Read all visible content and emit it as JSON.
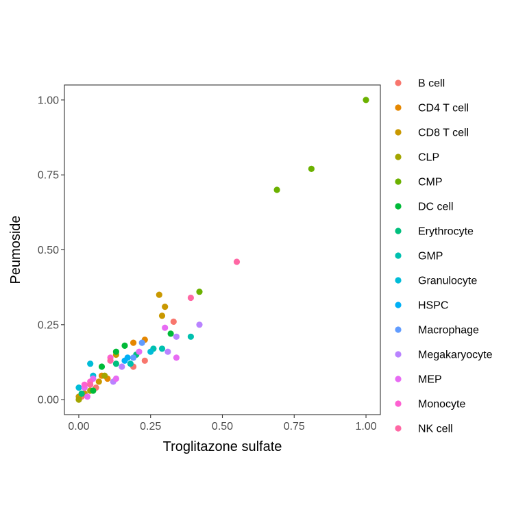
{
  "chart_data": {
    "type": "scatter",
    "xlabel": "Troglitazone sulfate",
    "ylabel": "Peumoside",
    "xlim": [
      -0.05,
      1.05
    ],
    "ylim": [
      -0.05,
      1.05
    ],
    "x_ticks": [
      "0.00",
      "0.25",
      "0.50",
      "0.75",
      "1.00"
    ],
    "y_ticks": [
      "0.00",
      "0.25",
      "0.50",
      "0.75",
      "1.00"
    ],
    "grid": false,
    "legend_position": "right",
    "series": [
      {
        "name": "B cell",
        "color": "#F8766D",
        "points": [
          [
            0.33,
            0.26
          ],
          [
            0.23,
            0.13
          ],
          [
            0.19,
            0.11
          ],
          [
            0.01,
            0.01
          ],
          [
            0.06,
            0.04
          ]
        ]
      },
      {
        "name": "CD4 T cell",
        "color": "#E58700",
        "points": [
          [
            0.23,
            0.2
          ],
          [
            0.08,
            0.08
          ],
          [
            0.1,
            0.07
          ],
          [
            0.02,
            0.02
          ],
          [
            0.19,
            0.19
          ]
        ]
      },
      {
        "name": "CD8 T cell",
        "color": "#C99800",
        "points": [
          [
            0.28,
            0.35
          ],
          [
            0.3,
            0.31
          ],
          [
            0.29,
            0.28
          ],
          [
            0.13,
            0.15
          ],
          [
            0.07,
            0.06
          ],
          [
            0.02,
            0.02
          ],
          [
            0.0,
            0.01
          ]
        ]
      },
      {
        "name": "CLP",
        "color": "#A3A500",
        "points": [
          [
            0.09,
            0.08
          ],
          [
            0.04,
            0.03
          ],
          [
            0.0,
            0.0
          ]
        ]
      },
      {
        "name": "CMP",
        "color": "#6BB100",
        "points": [
          [
            1.0,
            1.0
          ],
          [
            0.81,
            0.77
          ],
          [
            0.69,
            0.7
          ],
          [
            0.42,
            0.36
          ]
        ]
      },
      {
        "name": "DC cell",
        "color": "#00BA38",
        "points": [
          [
            0.16,
            0.18
          ],
          [
            0.32,
            0.22
          ],
          [
            0.13,
            0.16
          ],
          [
            0.08,
            0.11
          ],
          [
            0.05,
            0.03
          ]
        ]
      },
      {
        "name": "Erythrocyte",
        "color": "#00BF7D",
        "points": [
          [
            0.2,
            0.15
          ],
          [
            0.13,
            0.12
          ],
          [
            0.01,
            0.02
          ]
        ]
      },
      {
        "name": "GMP",
        "color": "#00C0AF",
        "points": [
          [
            0.39,
            0.21
          ],
          [
            0.29,
            0.17
          ],
          [
            0.26,
            0.17
          ],
          [
            0.18,
            0.12
          ]
        ]
      },
      {
        "name": "Granulocyte",
        "color": "#00BCD8",
        "points": [
          [
            0.04,
            0.12
          ],
          [
            0.25,
            0.16
          ],
          [
            0.0,
            0.04
          ],
          [
            0.05,
            0.08
          ]
        ]
      },
      {
        "name": "HSPC",
        "color": "#00B0F6",
        "points": [
          [
            0.17,
            0.14
          ],
          [
            0.16,
            0.13
          ]
        ]
      },
      {
        "name": "Macrophage",
        "color": "#619CFF",
        "points": [
          [
            0.22,
            0.19
          ],
          [
            0.19,
            0.14
          ]
        ]
      },
      {
        "name": "Megakaryocyte",
        "color": "#B983FF",
        "points": [
          [
            0.42,
            0.25
          ],
          [
            0.34,
            0.21
          ],
          [
            0.31,
            0.16
          ],
          [
            0.12,
            0.06
          ],
          [
            0.15,
            0.11
          ]
        ]
      },
      {
        "name": "MEP",
        "color": "#E76BF3",
        "points": [
          [
            0.3,
            0.24
          ],
          [
            0.34,
            0.14
          ],
          [
            0.21,
            0.16
          ],
          [
            0.13,
            0.07
          ],
          [
            0.05,
            0.07
          ],
          [
            0.02,
            0.04
          ],
          [
            0.03,
            0.01
          ]
        ]
      },
      {
        "name": "Monocyte",
        "color": "#FD61D1",
        "points": [
          [
            0.11,
            0.14
          ],
          [
            0.04,
            0.06
          ],
          [
            0.02,
            0.05
          ]
        ]
      },
      {
        "name": "NK cell",
        "color": "#FF67A4",
        "points": [
          [
            0.55,
            0.46
          ],
          [
            0.39,
            0.34
          ],
          [
            0.11,
            0.13
          ],
          [
            0.04,
            0.05
          ]
        ]
      }
    ]
  }
}
